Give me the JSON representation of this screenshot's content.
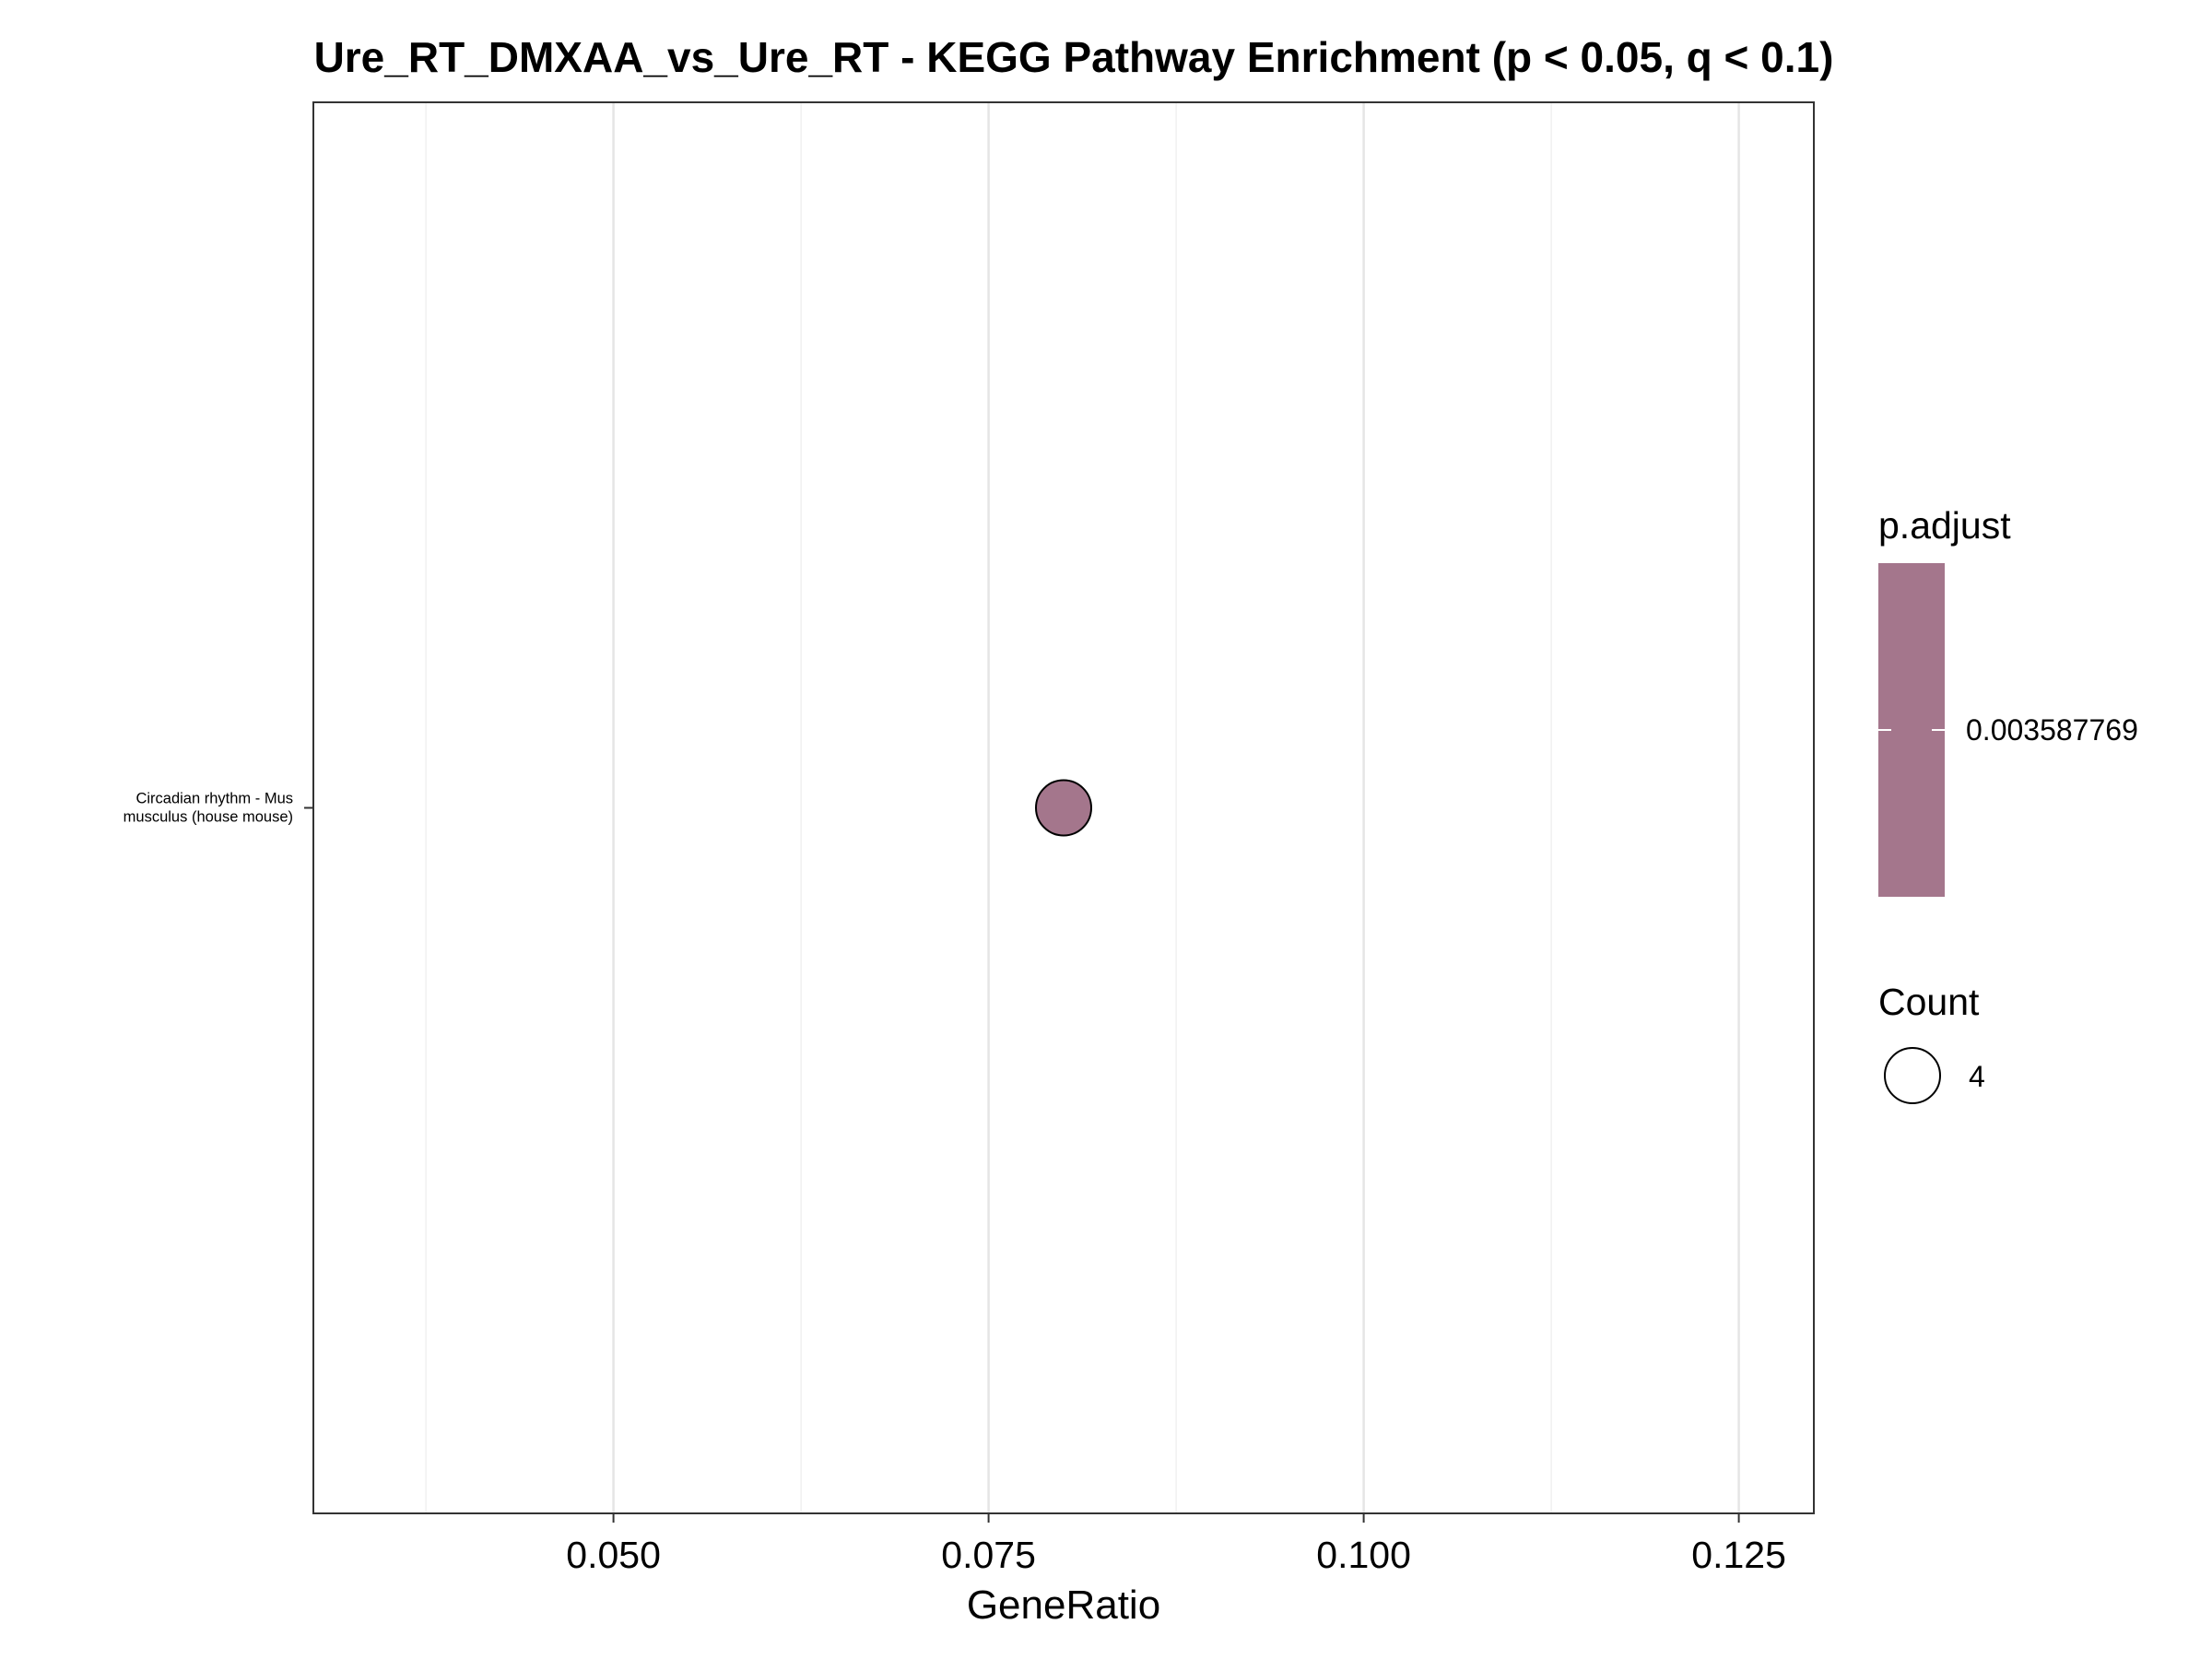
{
  "chart_data": {
    "type": "scatter",
    "title": "Ure_RT_DMXAA_vs_Ure_RT - KEGG Pathway Enrichment (p < 0.05, q < 0.1)",
    "xlabel": "GeneRatio",
    "ylabel": "",
    "xlim": [
      0.03,
      0.13
    ],
    "x_ticks": [
      0.05,
      0.075,
      0.1,
      0.125
    ],
    "x_tick_labels": [
      "0.050",
      "0.075",
      "0.100",
      "0.125"
    ],
    "grid": "vertical",
    "categories": [
      "Circadian rhythm - Mus musculus (house mouse)"
    ],
    "category_label_lines": [
      [
        "Circadian rhythm - Mus",
        "musculus (house mouse)"
      ]
    ],
    "points": [
      {
        "category": "Circadian rhythm - Mus musculus (house mouse)",
        "x": 0.08,
        "count": 4,
        "p_adjust": 0.003587769,
        "color": "#a4768c"
      }
    ],
    "legend": {
      "placement": "right",
      "color": {
        "title": "p.adjust",
        "value_label": "0.003587769",
        "fill": "#a4768c"
      },
      "size": {
        "title": "Count",
        "entries": [
          {
            "label": "4",
            "value": 4
          }
        ]
      }
    }
  }
}
